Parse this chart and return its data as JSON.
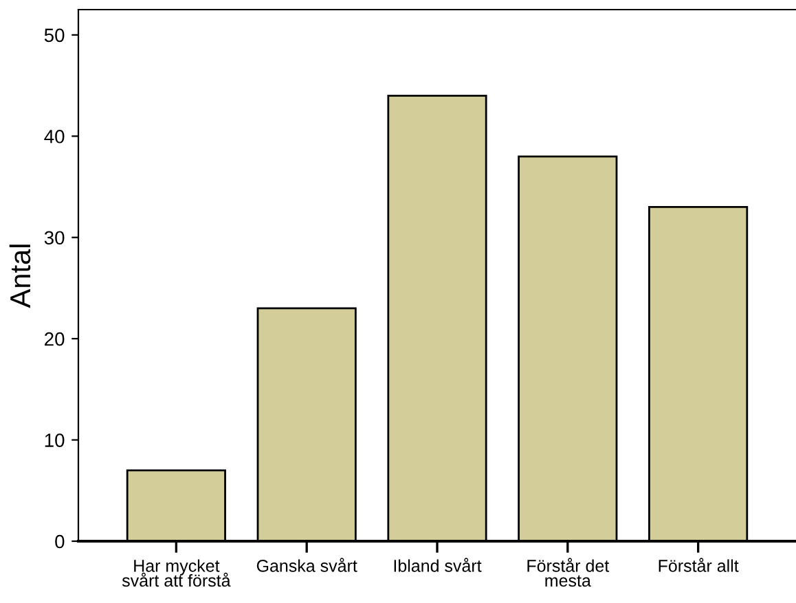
{
  "chart_data": {
    "type": "bar",
    "ylabel": "Antal",
    "categories": [
      "Har mycket\nsvårt att förstå",
      "Ganska svårt",
      "Ibland svårt",
      "Förstår det\nmesta",
      "Förstår allt"
    ],
    "values": [
      7,
      23,
      44,
      38,
      33
    ],
    "color": "#d3ce99",
    "ylim": [
      0,
      52.5
    ],
    "yticks": [
      0,
      10,
      20,
      30,
      40,
      50
    ],
    "grid": false
  }
}
